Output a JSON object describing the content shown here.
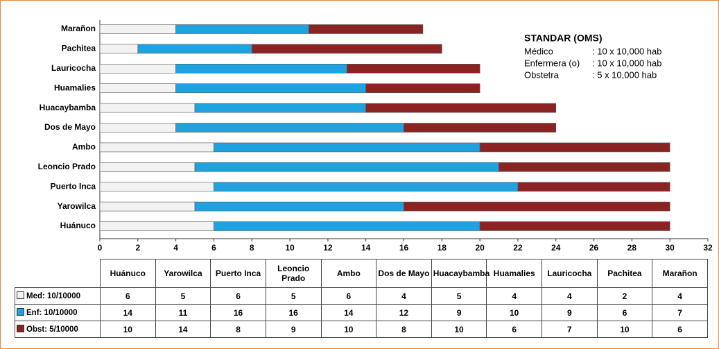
{
  "chart_data": {
    "type": "stacked-bar-horizontal",
    "categories": [
      "Huánuco",
      "Yarowilca",
      "Puerto Inca",
      "Leoncio Prado",
      "Ambo",
      "Dos de Mayo",
      "Huacaybamba",
      "Huamalies",
      "Lauricocha",
      "Pachitea",
      "Marañon"
    ],
    "series": [
      {
        "name": "Med: 10/10000",
        "color": "#f2f2f2",
        "values": [
          6,
          5,
          6,
          5,
          6,
          4,
          5,
          4,
          4,
          2,
          4
        ]
      },
      {
        "name": "Enf: 10/10000",
        "color": "#1fa3e0",
        "values": [
          14,
          11,
          16,
          16,
          14,
          12,
          9,
          10,
          9,
          6,
          7
        ]
      },
      {
        "name": "Obst: 5/10000",
        "color": "#8c2323",
        "values": [
          10,
          14,
          8,
          9,
          10,
          8,
          10,
          6,
          7,
          10,
          6
        ]
      }
    ],
    "xlim": [
      0,
      32
    ],
    "xticks": [
      0,
      2,
      4,
      6,
      8,
      10,
      12,
      14,
      16,
      18,
      20,
      22,
      24,
      26,
      28,
      30,
      32
    ],
    "annotation": {
      "title": "STANDAR (OMS)",
      "lines": [
        [
          "Médico",
          ": 10  x  10,000  hab"
        ],
        [
          "Enfermera (o)",
          ": 10  x  10,000 hab"
        ],
        [
          "Obstetra",
          ": 5   x  10,000 hab"
        ]
      ]
    }
  }
}
